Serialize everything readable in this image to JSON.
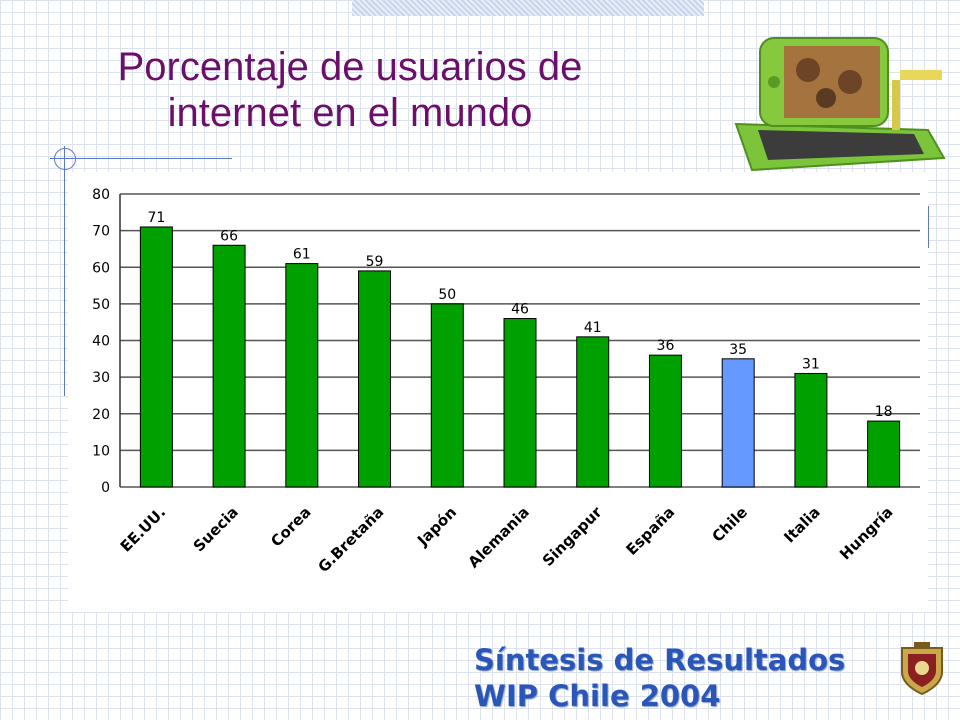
{
  "title": {
    "line1": "Porcentaje de usuarios de",
    "line2": "internet en  el mundo"
  },
  "footer": {
    "line1": "Síntesis de Resultados",
    "line2": "WIP Chile 2004"
  },
  "icons": {
    "laptop": "laptop-photo-icon",
    "seal": "university-seal-icon"
  },
  "colors": {
    "title": "#6b0f6b",
    "bar": "#00a000",
    "highlight": "#6699ff",
    "footer": "#2a56b8"
  },
  "chart_data": {
    "type": "bar",
    "categories": [
      "EE.UU.",
      "Suecia",
      "Corea",
      "G.Bretaña",
      "Japón",
      "Alemania",
      "Singapur",
      "España",
      "Chile",
      "Italia",
      "Hungría"
    ],
    "values": [
      71,
      66,
      61,
      59,
      50,
      46,
      41,
      36,
      35,
      31,
      18
    ],
    "highlight_category": "Chile",
    "yticks": [
      "0",
      "10",
      "20",
      "30",
      "40",
      "50",
      "60",
      "70",
      "80"
    ],
    "ylim": [
      0,
      80
    ],
    "grid": true,
    "legend": "none"
  }
}
